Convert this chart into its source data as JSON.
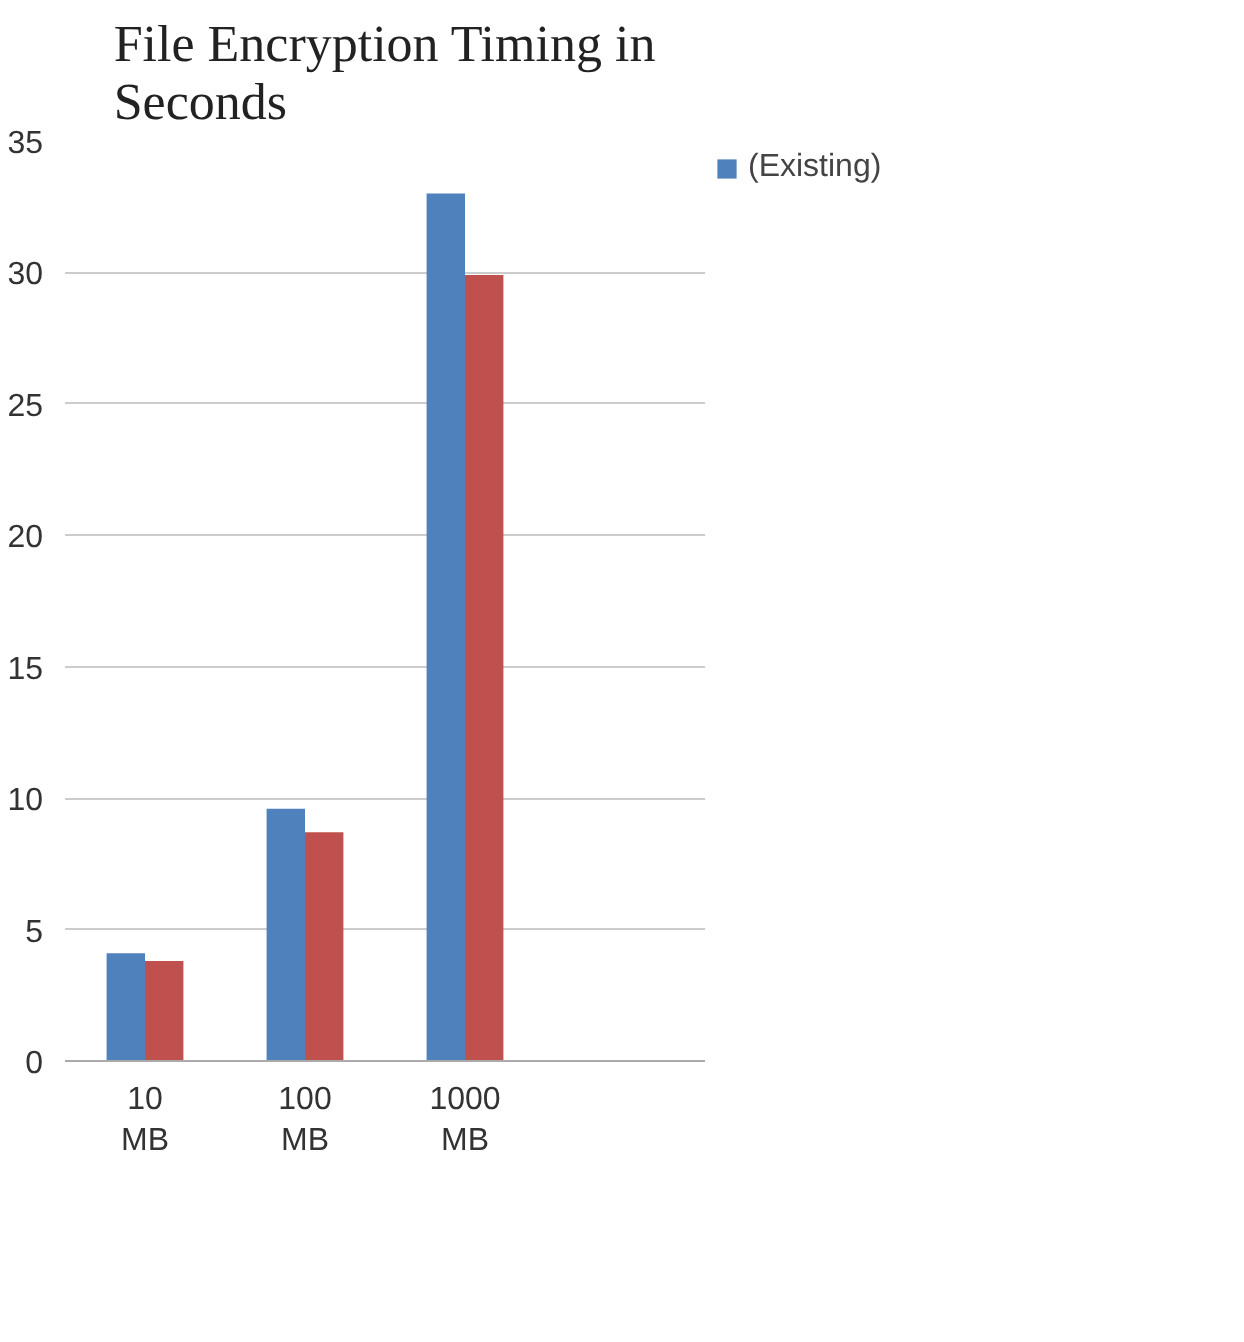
{
  "chart_data": {
    "type": "bar",
    "title": "File Encryption Timing in Seconds",
    "categories": [
      "10 MB",
      "100 MB",
      "1000 MB",
      null
    ],
    "series": [
      {
        "name": "(Existing)",
        "color": "#4f81bd",
        "values": [
          4.1,
          9.6,
          33.0,
          null
        ]
      },
      {
        "color": "#c0504d",
        "values": [
          3.8,
          8.7,
          29.9,
          null
        ]
      }
    ],
    "ylim": [
      0,
      35
    ],
    "yticks": [
      0,
      5,
      10,
      15,
      20,
      25,
      30,
      35
    ],
    "grid": "y",
    "legend": "top right"
  }
}
